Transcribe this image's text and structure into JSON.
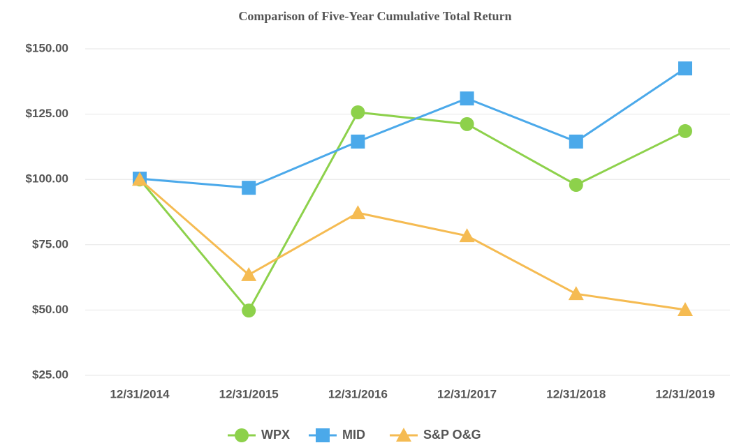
{
  "chart_data": {
    "type": "line",
    "title": "Comparison of Five-Year Cumulative Total Return",
    "categories": [
      "12/31/2014",
      "12/31/2015",
      "12/31/2016",
      "12/31/2017",
      "12/31/2018",
      "12/31/2019"
    ],
    "series": [
      {
        "name": "WPX",
        "color": "#8dd14b",
        "marker": "circle",
        "values": [
          100,
          49.8,
          125.7,
          121.2,
          97.9,
          118.5
        ]
      },
      {
        "name": "MID",
        "color": "#4ba9ea",
        "marker": "square",
        "values": [
          100.3,
          96.8,
          114.5,
          131,
          114.5,
          142.5
        ]
      },
      {
        "name": "S&P O&G",
        "color": "#f5bb52",
        "marker": "triangle",
        "values": [
          100,
          63.5,
          87.2,
          78.4,
          56.2,
          50.1
        ]
      }
    ],
    "ylim": [
      25,
      150
    ],
    "yticks": [
      {
        "value": 25,
        "label": "$25.00"
      },
      {
        "value": 50,
        "label": "$50.00"
      },
      {
        "value": 75,
        "label": "$75.00"
      },
      {
        "value": 100,
        "label": "$100.00"
      },
      {
        "value": 125,
        "label": "$125.00"
      },
      {
        "value": 150,
        "label": "$150.00"
      }
    ],
    "grid": true,
    "legend": "bottom"
  }
}
